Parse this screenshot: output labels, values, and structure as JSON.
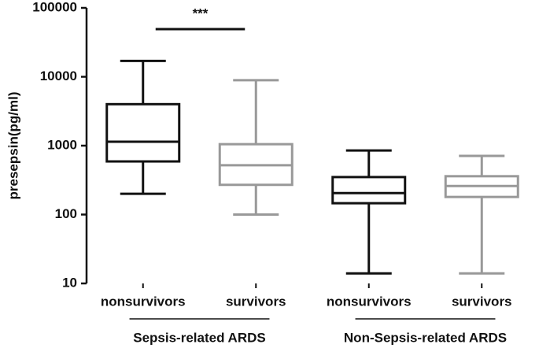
{
  "chart_data": {
    "type": "box",
    "ylabel": "presepsin(pg/ml)",
    "log_scale": true,
    "ylim": [
      10,
      100000
    ],
    "yticks": [
      10,
      100,
      1000,
      10000,
      100000
    ],
    "categories": [
      "nonsurvivors",
      "survivors",
      "nonsurvivors",
      "survivors"
    ],
    "groups": [
      "Sepsis-related ARDS",
      "Non-Sepsis-related ARDS"
    ],
    "annotations": [
      {
        "text": "***"
      }
    ],
    "boxes": [
      {
        "min": 200,
        "q1": 590,
        "median": 1140,
        "q3": 4000,
        "max": 17000,
        "color": "#111111"
      },
      {
        "min": 100,
        "q1": 270,
        "median": 520,
        "q3": 1050,
        "max": 8900,
        "color": "#999999"
      },
      {
        "min": 14,
        "q1": 146,
        "median": 205,
        "q3": 350,
        "max": 850,
        "color": "#111111"
      },
      {
        "min": 14,
        "q1": 180,
        "median": 260,
        "q3": 360,
        "max": 710,
        "color": "#999999"
      }
    ]
  }
}
